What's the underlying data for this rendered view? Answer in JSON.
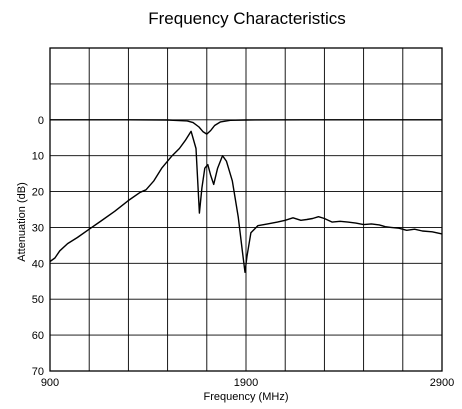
{
  "chart_data": {
    "type": "line",
    "title": "Frequency Characteristics",
    "xlabel": "Frequency (MHz)",
    "ylabel": "Attenuation (dB)",
    "xlim": [
      900,
      2900
    ],
    "ylim": [
      -20,
      70
    ],
    "y_inverted": true,
    "grid": true,
    "x_tick_labels": [
      {
        "value": 900,
        "label": "900"
      },
      {
        "value": 1900,
        "label": "1900"
      },
      {
        "value": 2900,
        "label": "2900"
      }
    ],
    "y_tick_labels": [
      {
        "value": 0,
        "label": "0"
      },
      {
        "value": 10,
        "label": "10"
      },
      {
        "value": 20,
        "label": "20"
      },
      {
        "value": 30,
        "label": "30"
      },
      {
        "value": 40,
        "label": "40"
      },
      {
        "value": 50,
        "label": "50"
      },
      {
        "value": 60,
        "label": "60"
      },
      {
        "value": 70,
        "label": "70"
      }
    ],
    "x_grid_step": 200,
    "y_grid_step": 10,
    "series": [
      {
        "color": "#000000",
        "points": [
          [
            900,
            0.0
          ],
          [
            1300,
            0.0
          ],
          [
            1500,
            0.05
          ],
          [
            1600,
            0.3
          ],
          [
            1630,
            0.8
          ],
          [
            1660,
            2.0
          ],
          [
            1680,
            3.3
          ],
          [
            1700,
            4.0
          ],
          [
            1720,
            3.0
          ],
          [
            1740,
            1.6
          ],
          [
            1770,
            0.6
          ],
          [
            1820,
            0.15
          ],
          [
            1900,
            0.05
          ],
          [
            2200,
            0.0
          ],
          [
            2900,
            0.0
          ]
        ]
      },
      {
        "color": "#000000",
        "points": [
          [
            900,
            39.5
          ],
          [
            925,
            38.5
          ],
          [
            950,
            36.5
          ],
          [
            990,
            34.5
          ],
          [
            1040,
            32.8
          ],
          [
            1100,
            30.5
          ],
          [
            1160,
            28.2
          ],
          [
            1230,
            25.5
          ],
          [
            1300,
            22.5
          ],
          [
            1360,
            20.2
          ],
          [
            1390,
            19.5
          ],
          [
            1430,
            17.0
          ],
          [
            1470,
            13.5
          ],
          [
            1520,
            10.2
          ],
          [
            1560,
            8.0
          ],
          [
            1590,
            5.8
          ],
          [
            1620,
            3.2
          ],
          [
            1645,
            8.0
          ],
          [
            1662,
            26.0
          ],
          [
            1675,
            19.0
          ],
          [
            1690,
            13.5
          ],
          [
            1705,
            12.5
          ],
          [
            1720,
            15.5
          ],
          [
            1735,
            18.0
          ],
          [
            1755,
            13.5
          ],
          [
            1780,
            10.0
          ],
          [
            1800,
            11.5
          ],
          [
            1830,
            17.0
          ],
          [
            1860,
            27.0
          ],
          [
            1880,
            36.0
          ],
          [
            1895,
            42.5
          ],
          [
            1905,
            38.0
          ],
          [
            1925,
            31.5
          ],
          [
            1960,
            29.5
          ],
          [
            2010,
            29.0
          ],
          [
            2060,
            28.5
          ],
          [
            2100,
            28.0
          ],
          [
            2140,
            27.3
          ],
          [
            2180,
            28.0
          ],
          [
            2210,
            27.8
          ],
          [
            2240,
            27.5
          ],
          [
            2270,
            27.0
          ],
          [
            2300,
            27.5
          ],
          [
            2340,
            28.5
          ],
          [
            2380,
            28.3
          ],
          [
            2420,
            28.5
          ],
          [
            2460,
            28.8
          ],
          [
            2500,
            29.2
          ],
          [
            2540,
            29.0
          ],
          [
            2580,
            29.3
          ],
          [
            2610,
            29.8
          ],
          [
            2640,
            30.0
          ],
          [
            2680,
            30.2
          ],
          [
            2720,
            30.8
          ],
          [
            2760,
            30.5
          ],
          [
            2800,
            31.0
          ],
          [
            2850,
            31.2
          ],
          [
            2900,
            31.8
          ]
        ]
      }
    ]
  }
}
